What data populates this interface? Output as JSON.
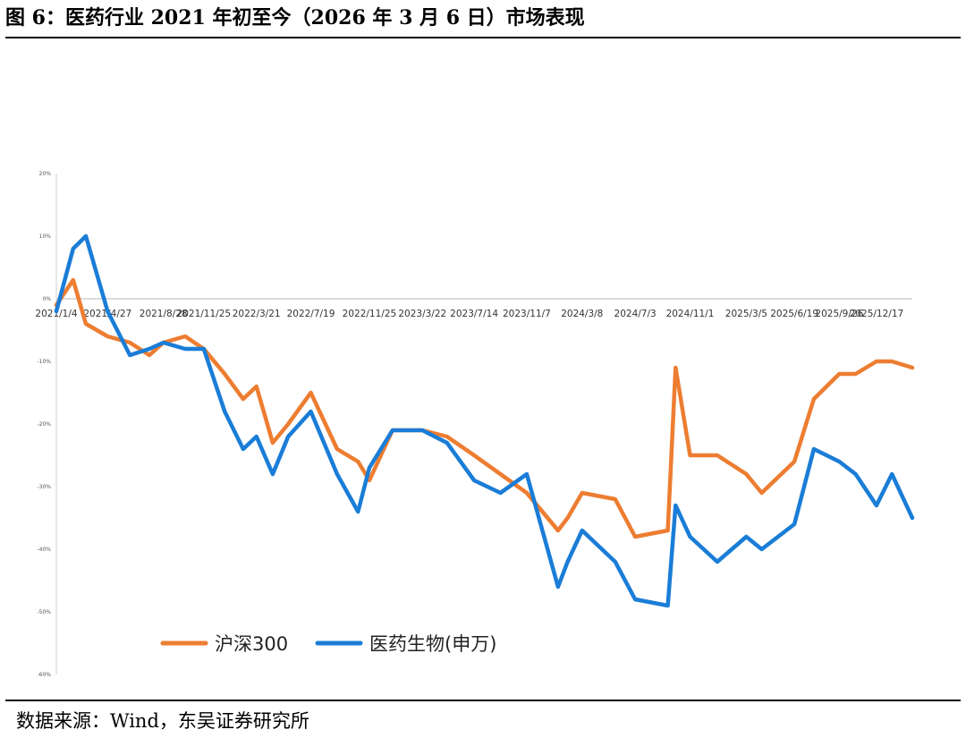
{
  "title": "图 6：医药行业 2021 年初至今（2026 年 3 月 6 日）市场表现",
  "source": "数据来源：Wind，东吴证券研究所",
  "colors": {
    "hs300": "#ED7D31",
    "pharma": "#1A7DD7",
    "axis": "#d0d0d0",
    "text": "#333333"
  },
  "chart_data": {
    "type": "line",
    "title": "",
    "xlabel": "",
    "ylabel": "",
    "ylim": [
      -60,
      20
    ],
    "yticks": [
      20,
      10,
      0,
      -10,
      -20,
      -30,
      -40,
      -50,
      -60
    ],
    "ytick_labels": [
      "20%",
      "10%",
      "0%",
      "-10%",
      "-20%",
      "-30%",
      "-40%",
      "-50%",
      "-60%"
    ],
    "xtick_labels": [
      "2021/1/4",
      "2021/4/27",
      "2021/8/28",
      "2021/11/25",
      "2022/3/21",
      "2022/7/19",
      "2022/11/25",
      "2023/3/22",
      "2023/7/14",
      "2023/11/7",
      "2024/3/8",
      "2024/7/3",
      "2024/11/1",
      "2025/3/5",
      "2025/6/19",
      "2025/9/26",
      "2025/12/17"
    ],
    "legend_position": "bottom-left",
    "x": [
      "2021/1/4",
      "2021/2/10",
      "2021/3/10",
      "2021/4/27",
      "2021/6/15",
      "2021/7/28",
      "2021/8/28",
      "2021/10/15",
      "2021/11/25",
      "2022/1/10",
      "2022/2/20",
      "2022/3/21",
      "2022/4/26",
      "2022/5/30",
      "2022/7/19",
      "2022/9/15",
      "2022/10/31",
      "2022/11/25",
      "2023/1/15",
      "2023/3/22",
      "2023/5/15",
      "2023/7/14",
      "2023/9/10",
      "2023/11/7",
      "2024/1/15",
      "2024/2/5",
      "2024/3/8",
      "2024/5/20",
      "2024/7/3",
      "2024/9/13",
      "2024/9/30",
      "2024/11/1",
      "2024/12/31",
      "2025/3/5",
      "2025/4/8",
      "2025/6/19",
      "2025/8/1",
      "2025/9/26",
      "2025/11/1",
      "2025/12/17",
      "2026/1/20",
      "2026/3/6"
    ],
    "series": [
      {
        "name": "沪深300",
        "color_key": "hs300",
        "values": [
          -1,
          3,
          -4,
          -6,
          -7,
          -9,
          -7,
          -6,
          -8,
          -12,
          -16,
          -14,
          -23,
          -20,
          -15,
          -24,
          -26,
          -29,
          -21,
          -21,
          -22,
          -25,
          -28,
          -31,
          -37,
          -35,
          -31,
          -32,
          -38,
          -37,
          -11,
          -25,
          -25,
          -28,
          -31,
          -26,
          -16,
          -12,
          -12,
          -10,
          -10,
          -11
        ]
      },
      {
        "name": "医药生物(申万)",
        "color_key": "pharma",
        "values": [
          -2,
          8,
          10,
          -2,
          -9,
          -8,
          -7,
          -8,
          -8,
          -18,
          -24,
          -22,
          -28,
          -22,
          -18,
          -28,
          -34,
          -27,
          -21,
          -21,
          -23,
          -29,
          -31,
          -28,
          -46,
          -42,
          -37,
          -42,
          -48,
          -49,
          -33,
          -38,
          -42,
          -38,
          -40,
          -36,
          -24,
          -26,
          -28,
          -33,
          -28,
          -35
        ]
      }
    ]
  }
}
